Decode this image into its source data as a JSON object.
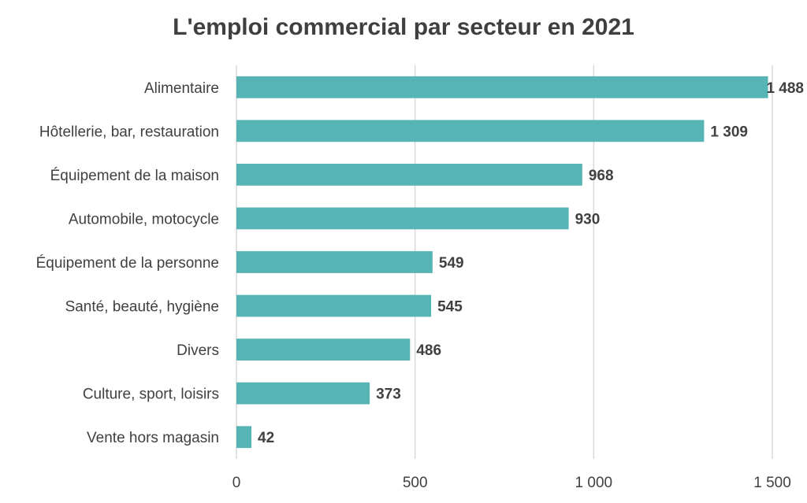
{
  "chart_data": {
    "type": "bar",
    "orientation": "horizontal",
    "title": "L'emploi commercial par secteur en 2021",
    "xlabel": "",
    "ylabel": "",
    "categories": [
      "Alimentaire",
      "Hôtellerie, bar, restauration",
      "Équipement de la maison",
      "Automobile, motocycle",
      "Équipement de la personne",
      "Santé, beauté, hygiène",
      "Divers",
      "Culture, sport, loisirs",
      "Vente hors magasin"
    ],
    "values": [
      1488,
      1309,
      968,
      930,
      549,
      545,
      486,
      373,
      42
    ],
    "data_labels": [
      "1 488",
      "1 309",
      "968",
      "930",
      "549",
      "545",
      "486",
      "373",
      "42"
    ],
    "xlim": [
      0,
      1500
    ],
    "xticks": [
      0,
      500,
      1000,
      1500
    ],
    "xtick_labels": [
      "0",
      "500",
      "1 000",
      "1 500"
    ],
    "grid": true,
    "legend": "none",
    "bar_color": "#56b4b4"
  }
}
